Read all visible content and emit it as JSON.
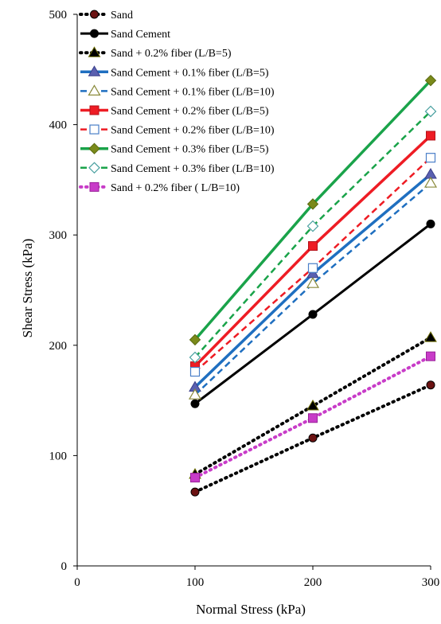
{
  "chart_data": {
    "type": "scatter",
    "xlabel": "Normal  Stress (kPa)",
    "ylabel": "Shear  Stress (kPa)",
    "xlim": [
      0,
      300
    ],
    "ylim": [
      0,
      500
    ],
    "x_ticks": [
      "0",
      "100",
      "200",
      "300"
    ],
    "y_ticks": [
      "0",
      "100",
      "200",
      "300",
      "400",
      "500"
    ],
    "x_tick_values": [
      0,
      100,
      200,
      300
    ],
    "y_tick_values": [
      0,
      100,
      200,
      300,
      400,
      500
    ],
    "grid": false,
    "legend_position": "top-left",
    "x": [
      100,
      200,
      300
    ],
    "series": [
      {
        "name": "Sand",
        "values": [
          67,
          116,
          164
        ],
        "color": "#000000",
        "line": "dotted",
        "marker": "circle-dark-red",
        "mode": "lines+markers"
      },
      {
        "name": "Sand Cement",
        "values": [
          147,
          228,
          310
        ],
        "color": "#000000",
        "line": "solid",
        "marker": "circle-black",
        "mode": "lines+markers"
      },
      {
        "name": "Sand + 0.2% fiber (L/B=5)",
        "values": [
          83,
          145,
          207
        ],
        "color": "#000000",
        "line": "dotted",
        "marker": "triangle-black-olive",
        "mode": "lines+markers"
      },
      {
        "name": "Sand Cement + 0.1% fiber (L/B=5)",
        "values": [
          162,
          265,
          355
        ],
        "color": "#1f6fc0",
        "line": "solid",
        "marker": "triangle-steel",
        "mode": "lines+markers"
      },
      {
        "name": "Sand Cement + 0.1% fiber (L/B=10)",
        "values": [
          155,
          256,
          347
        ],
        "color": "#1f6fc0",
        "line": "dashed",
        "marker": "triangle-open-olive",
        "mode": "lines+markers"
      },
      {
        "name": "Sand Cement + 0.2% fiber (L/B=5)",
        "values": [
          181,
          290,
          390
        ],
        "color": "#ee1c24",
        "line": "solid",
        "marker": "square-red",
        "mode": "lines+markers"
      },
      {
        "name": "Sand Cement + 0.2% fiber (L/B=10)",
        "values": [
          176,
          270,
          370
        ],
        "color": "#ee1c24",
        "line": "dashed",
        "marker": "square-open-blue",
        "mode": "lines+markers"
      },
      {
        "name": "Sand Cement + 0.3% fiber (L/B=5)",
        "values": [
          205,
          328,
          440
        ],
        "color": "#1aa34a",
        "line": "solid",
        "marker": "diamond-olive",
        "mode": "lines+markers"
      },
      {
        "name": "Sand Cement + 0.3% fiber (L/B=10)",
        "values": [
          189,
          308,
          412
        ],
        "color": "#1aa34a",
        "line": "dashed",
        "marker": "diamond-open-teal",
        "mode": "lines+markers"
      },
      {
        "name": "Sand + 0.2% fiber ( L/B=10)",
        "values": [
          80,
          134,
          190
        ],
        "color": "#c83cc8",
        "line": "dotted",
        "marker": "square-magenta",
        "mode": "lines+markers"
      }
    ]
  }
}
